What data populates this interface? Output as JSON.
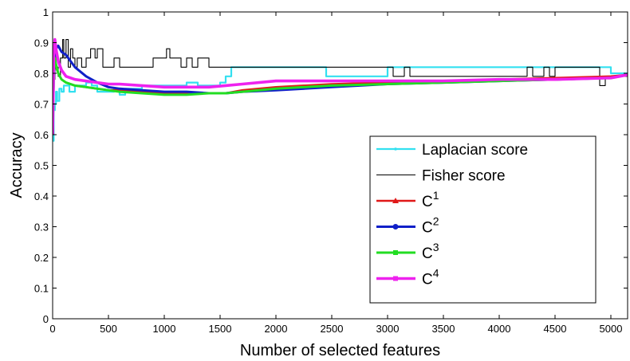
{
  "chart_data": {
    "type": "line",
    "title": "",
    "xlabel": "Number of selected features",
    "ylabel": "Accuracy",
    "xlim": [
      0,
      5150
    ],
    "ylim": [
      0,
      1
    ],
    "xticks": [
      0,
      500,
      1000,
      1500,
      2000,
      2500,
      3000,
      3500,
      4000,
      4500,
      5000
    ],
    "yticks": [
      0,
      0.1,
      0.2,
      0.3,
      0.4,
      0.5,
      0.6,
      0.7,
      0.8,
      0.9,
      1
    ],
    "grid": false,
    "legend_position": "lower-right",
    "series": [
      {
        "name": "Laplacian score",
        "color": "#33e0f0",
        "marker": "point",
        "step": true,
        "x": [
          0,
          10,
          20,
          30,
          40,
          60,
          80,
          100,
          150,
          200,
          250,
          300,
          350,
          400,
          500,
          550,
          600,
          650,
          700,
          800,
          900,
          1000,
          1100,
          1200,
          1300,
          1400,
          1500,
          1550,
          1600,
          1700,
          1800,
          2000,
          2200,
          2400,
          2450,
          2500,
          2800,
          3000,
          3100,
          3200,
          3500,
          4000,
          4400,
          4500,
          4700,
          4900,
          4980,
          5000,
          5150
        ],
        "y": [
          0.58,
          0.68,
          0.7,
          0.74,
          0.71,
          0.75,
          0.74,
          0.76,
          0.74,
          0.76,
          0.76,
          0.77,
          0.76,
          0.74,
          0.74,
          0.75,
          0.73,
          0.75,
          0.75,
          0.76,
          0.76,
          0.76,
          0.76,
          0.77,
          0.76,
          0.76,
          0.77,
          0.79,
          0.82,
          0.82,
          0.82,
          0.82,
          0.82,
          0.82,
          0.79,
          0.79,
          0.79,
          0.82,
          0.82,
          0.82,
          0.82,
          0.82,
          0.82,
          0.82,
          0.82,
          0.82,
          0.82,
          0.8,
          0.8
        ]
      },
      {
        "name": "Fisher score",
        "color": "#000000",
        "marker": "none",
        "step": true,
        "x": [
          0,
          10,
          20,
          30,
          50,
          70,
          90,
          100,
          120,
          140,
          160,
          180,
          200,
          220,
          260,
          300,
          340,
          380,
          400,
          450,
          500,
          550,
          600,
          700,
          800,
          900,
          1000,
          1020,
          1050,
          1100,
          1150,
          1200,
          1250,
          1300,
          1400,
          1500,
          1550,
          1600,
          1800,
          2000,
          2500,
          3000,
          3050,
          3150,
          3200,
          3500,
          4000,
          4250,
          4300,
          4400,
          4450,
          4500,
          4900,
          4950,
          5000,
          5150
        ],
        "y": [
          0.6,
          0.78,
          0.85,
          0.82,
          0.79,
          0.85,
          0.91,
          0.85,
          0.91,
          0.82,
          0.88,
          0.85,
          0.82,
          0.85,
          0.82,
          0.85,
          0.88,
          0.85,
          0.88,
          0.82,
          0.82,
          0.85,
          0.82,
          0.82,
          0.82,
          0.85,
          0.85,
          0.88,
          0.85,
          0.85,
          0.82,
          0.85,
          0.82,
          0.85,
          0.82,
          0.82,
          0.82,
          0.82,
          0.82,
          0.82,
          0.82,
          0.82,
          0.79,
          0.82,
          0.79,
          0.79,
          0.79,
          0.82,
          0.79,
          0.82,
          0.79,
          0.82,
          0.76,
          0.79,
          0.79,
          0.79
        ]
      },
      {
        "name": "C^1",
        "color": "#e01818",
        "marker": "triangle",
        "step": false,
        "x": [
          0,
          5,
          10,
          20,
          30,
          50,
          80,
          120,
          200,
          300,
          400,
          500,
          600,
          800,
          1000,
          1200,
          1400,
          1550,
          1700,
          2000,
          2500,
          3000,
          3500,
          4000,
          4500,
          5000,
          5150
        ],
        "y": [
          0.6,
          0.69,
          0.8,
          0.84,
          0.82,
          0.8,
          0.78,
          0.77,
          0.76,
          0.755,
          0.75,
          0.745,
          0.745,
          0.74,
          0.735,
          0.735,
          0.735,
          0.735,
          0.745,
          0.755,
          0.765,
          0.77,
          0.775,
          0.78,
          0.785,
          0.79,
          0.795
        ]
      },
      {
        "name": "C^2",
        "color": "#1020c8",
        "marker": "circle",
        "step": false,
        "x": [
          0,
          5,
          10,
          20,
          30,
          50,
          80,
          120,
          160,
          200,
          300,
          400,
          500,
          600,
          800,
          1000,
          1200,
          1400,
          1550,
          1700,
          2000,
          2500,
          3000,
          3500,
          4000,
          4500,
          5000,
          5150
        ],
        "y": [
          0.6,
          0.7,
          0.78,
          0.84,
          0.88,
          0.89,
          0.87,
          0.86,
          0.84,
          0.82,
          0.79,
          0.77,
          0.755,
          0.75,
          0.745,
          0.74,
          0.74,
          0.735,
          0.735,
          0.74,
          0.745,
          0.755,
          0.765,
          0.77,
          0.775,
          0.78,
          0.785,
          0.795
        ]
      },
      {
        "name": "C^3",
        "color": "#22dd22",
        "marker": "square",
        "step": false,
        "x": [
          0,
          5,
          10,
          20,
          30,
          50,
          80,
          120,
          200,
          300,
          400,
          500,
          600,
          800,
          1000,
          1200,
          1400,
          1550,
          1700,
          2000,
          2500,
          3000,
          3500,
          4000,
          4500,
          5000,
          5150
        ],
        "y": [
          0.6,
          0.68,
          0.8,
          0.85,
          0.83,
          0.8,
          0.78,
          0.77,
          0.76,
          0.755,
          0.75,
          0.745,
          0.74,
          0.735,
          0.73,
          0.73,
          0.735,
          0.735,
          0.74,
          0.75,
          0.76,
          0.765,
          0.77,
          0.775,
          0.78,
          0.785,
          0.795
        ]
      },
      {
        "name": "C^4",
        "color": "#ee22ee",
        "marker": "square",
        "step": false,
        "x": [
          0,
          5,
          10,
          20,
          30,
          50,
          80,
          120,
          200,
          300,
          400,
          500,
          600,
          800,
          1000,
          1200,
          1400,
          1550,
          1700,
          2000,
          2500,
          3000,
          3500,
          4000,
          4500,
          5000,
          5150
        ],
        "y": [
          0.6,
          0.72,
          0.86,
          0.91,
          0.88,
          0.84,
          0.81,
          0.79,
          0.78,
          0.775,
          0.77,
          0.765,
          0.765,
          0.76,
          0.755,
          0.755,
          0.755,
          0.76,
          0.765,
          0.775,
          0.775,
          0.775,
          0.775,
          0.78,
          0.78,
          0.785,
          0.795
        ]
      }
    ]
  }
}
